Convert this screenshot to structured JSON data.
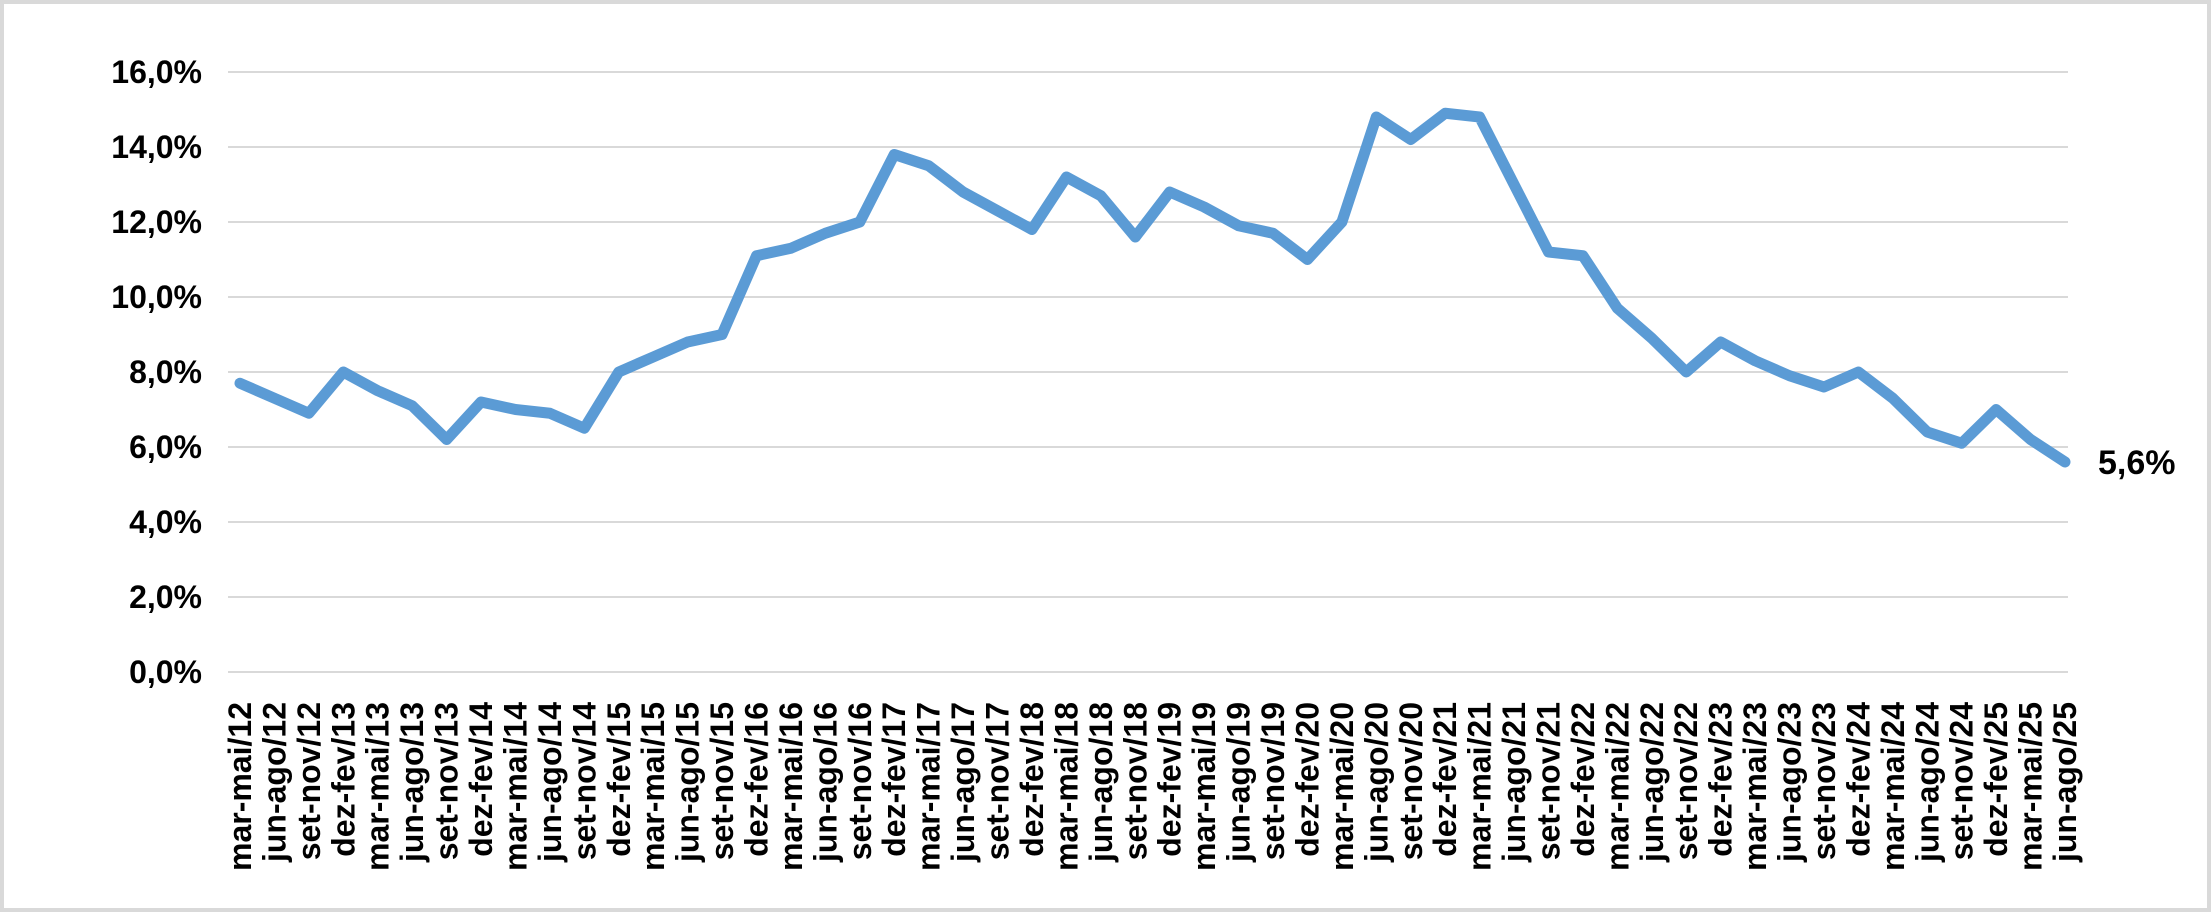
{
  "chart_data": {
    "type": "line",
    "title": "",
    "categories": [
      "mar-mai/12",
      "jun-ago/12",
      "set-nov/12",
      "dez-fev/13",
      "mar-mai/13",
      "jun-ago/13",
      "set-nov/13",
      "dez-fev/14",
      "mar-mai/14",
      "jun-ago/14",
      "set-nov/14",
      "dez-fev/15",
      "mar-mai/15",
      "jun-ago/15",
      "set-nov/15",
      "dez-fev/16",
      "mar-mai/16",
      "jun-ago/16",
      "set-nov/16",
      "dez-fev/17",
      "mar-mai/17",
      "jun-ago/17",
      "set-nov/17",
      "dez-fev/18",
      "mar-mai/18",
      "jun-ago/18",
      "set-nov/18",
      "dez-fev/19",
      "mar-mai/19",
      "jun-ago/19",
      "set-nov/19",
      "dez-fev/20",
      "mar-mai/20",
      "jun-ago/20",
      "set-nov/20",
      "dez-fev/21",
      "mar-mai/21",
      "jun-ago/21",
      "set-nov/21",
      "dez-fev/22",
      "mar-mai/22",
      "jun-ago/22",
      "set-nov/22",
      "dez-fev/23",
      "mar-mai/23",
      "jun-ago/23",
      "set-nov/23",
      "dez-fev/24",
      "mar-mai/24",
      "jun-ago/24",
      "set-nov/24",
      "dez-fev/25",
      "mar-mai/25",
      "jun-ago/25"
    ],
    "values": [
      7.7,
      7.3,
      6.9,
      8.0,
      7.5,
      7.1,
      6.2,
      7.2,
      7.0,
      6.9,
      6.5,
      8.0,
      8.4,
      8.8,
      9.0,
      11.1,
      11.3,
      11.7,
      12.0,
      13.8,
      13.5,
      12.8,
      12.3,
      11.8,
      13.2,
      12.7,
      11.6,
      12.8,
      12.4,
      11.9,
      11.7,
      11.0,
      12.0,
      14.8,
      14.2,
      14.9,
      14.8,
      13.0,
      11.2,
      11.1,
      9.7,
      8.9,
      8.0,
      8.8,
      8.3,
      7.9,
      7.6,
      8.0,
      7.3,
      6.4,
      6.1,
      7.0,
      6.2,
      5.6
    ],
    "unit": "%",
    "end_label": "5,6%",
    "y_axis": {
      "min": 0,
      "max": 16,
      "step": 2,
      "tick_values": [
        0,
        2,
        4,
        6,
        8,
        10,
        12,
        14,
        16
      ],
      "tick_labels": [
        "0,0%",
        "2,0%",
        "4,0%",
        "6,0%",
        "8,0%",
        "10,0%",
        "12,0%",
        "14,0%",
        "16,0%"
      ]
    },
    "x_axis": {
      "tick_rotation": -90
    },
    "legend": "none",
    "grid": "horizontal",
    "colors": {
      "line": "#5B9BD5",
      "grid": "#D9D9D9",
      "frame": "#D9D9D9",
      "text": "#000000",
      "background": "#FFFFFF"
    },
    "line_width": 11
  }
}
